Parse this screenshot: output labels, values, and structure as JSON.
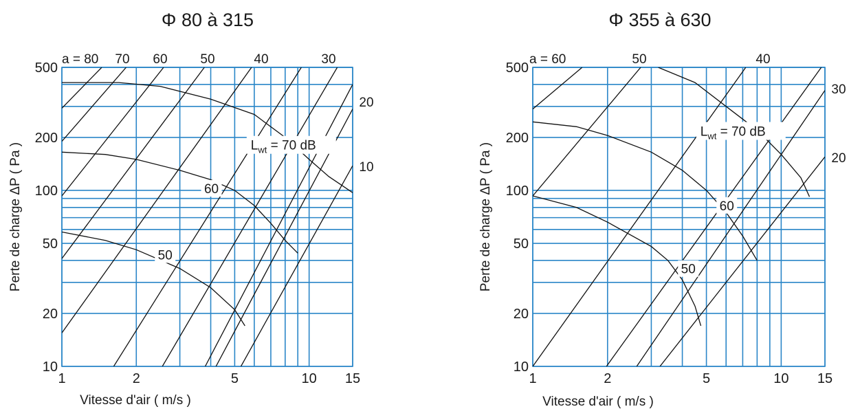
{
  "chart_data": [
    {
      "type": "line",
      "title": "Φ 80 à 315",
      "xlabel": "Vitesse d'air ( m/s )",
      "ylabel": "Perte de charge ΔP ( Pa )",
      "x_scale": "log",
      "y_scale": "log",
      "xlim": [
        1,
        15
      ],
      "ylim": [
        10,
        500
      ],
      "x_ticks": [
        1,
        2,
        5,
        10,
        15
      ],
      "y_ticks": [
        10,
        20,
        50,
        100,
        200,
        500
      ],
      "grid": true,
      "a_prefix": "a = ",
      "a_lines": [
        {
          "label": "80",
          "points": [
            [
              1.0,
              293
            ],
            [
              1.45,
              500
            ]
          ]
        },
        {
          "label": "70",
          "points": [
            [
              1.0,
              190
            ],
            [
              1.82,
              500
            ]
          ]
        },
        {
          "label": "60",
          "points": [
            [
              1.0,
              93
            ],
            [
              2.58,
              500
            ]
          ]
        },
        {
          "label": "50",
          "points": [
            [
              1.0,
              41
            ],
            [
              3.77,
              500
            ]
          ]
        },
        {
          "label": "",
          "points": [
            [
              1.0,
              15.5
            ],
            [
              5.85,
              500
            ]
          ]
        },
        {
          "label": "40",
          "points": [
            [
              1.62,
              10
            ],
            [
              9.3,
              500
            ]
          ]
        },
        {
          "label": "",
          "points": [
            [
              2.55,
              10
            ],
            [
              13.0,
              500
            ]
          ]
        },
        {
          "label": "30",
          "points": [
            [
              3.8,
              10
            ],
            [
              15.0,
              400
            ]
          ]
        },
        {
          "label": "20",
          "points": [
            [
              4.2,
              10
            ],
            [
              15.0,
              290
            ]
          ]
        },
        {
          "label": "10",
          "points": [
            [
              5.3,
              10
            ],
            [
              15.0,
              138
            ]
          ]
        }
      ],
      "lwt_prefix": "L",
      "lwt_sub": "wt",
      "lwt_suffix": " = 70 dB",
      "lwt_curves": [
        {
          "label": "70",
          "points": [
            [
              1.0,
              410
            ],
            [
              1.7,
              410
            ],
            [
              2.5,
              390
            ],
            [
              4.0,
              330
            ],
            [
              6.0,
              270
            ],
            [
              8.0,
              200
            ],
            [
              10.0,
              150
            ],
            [
              12.0,
              120
            ],
            [
              15.0,
              97
            ]
          ]
        },
        {
          "label": "60",
          "points": [
            [
              1.0,
              165
            ],
            [
              1.5,
              160
            ],
            [
              2.0,
              150
            ],
            [
              3.0,
              130
            ],
            [
              4.0,
              115
            ],
            [
              5.0,
              100
            ],
            [
              6.0,
              82
            ],
            [
              7.0,
              65
            ],
            [
              8.0,
              52
            ],
            [
              9.0,
              44
            ]
          ]
        },
        {
          "label": "50",
          "points": [
            [
              1.0,
              58
            ],
            [
              1.5,
              52
            ],
            [
              2.0,
              46
            ],
            [
              3.0,
              36
            ],
            [
              4.0,
              28
            ],
            [
              5.0,
              21
            ],
            [
              5.5,
              17
            ]
          ]
        }
      ]
    },
    {
      "type": "line",
      "title": "Φ 355 à 630",
      "xlabel": "Vitesse d'air ( m/s )",
      "ylabel": "Perte de charge ΔP ( Pa )",
      "x_scale": "log",
      "y_scale": "log",
      "xlim": [
        1,
        15
      ],
      "ylim": [
        10,
        500
      ],
      "x_ticks": [
        1,
        2,
        5,
        10,
        15
      ],
      "y_ticks": [
        10,
        20,
        50,
        100,
        200,
        500
      ],
      "grid": true,
      "a_prefix": "a = ",
      "a_lines": [
        {
          "label": "60",
          "points": [
            [
              1.0,
              290
            ],
            [
              1.58,
              500
            ]
          ]
        },
        {
          "label": "50",
          "points": [
            [
              1.0,
              93
            ],
            [
              2.72,
              500
            ]
          ]
        },
        {
          "label": "40",
          "points": [
            [
              1.0,
              10
            ],
            [
              7.2,
              500
            ]
          ]
        },
        {
          "label": "",
          "points": [
            [
              1.98,
              10
            ],
            [
              14.5,
              500
            ]
          ]
        },
        {
          "label": "30",
          "points": [
            [
              2.62,
              10
            ],
            [
              15.0,
              370
            ]
          ]
        },
        {
          "label": "20",
          "points": [
            [
              3.25,
              10
            ],
            [
              15.0,
              155
            ]
          ]
        }
      ],
      "lwt_prefix": "L",
      "lwt_sub": "wt",
      "lwt_suffix": " = 70 dB",
      "lwt_curves": [
        {
          "label": "70",
          "points": [
            [
              3.2,
              500
            ],
            [
              4.5,
              410
            ],
            [
              6.0,
              300
            ],
            [
              8.0,
              220
            ],
            [
              10.0,
              160
            ],
            [
              12.0,
              118
            ],
            [
              13.0,
              92
            ]
          ]
        },
        {
          "label": "60",
          "points": [
            [
              1.0,
              245
            ],
            [
              1.5,
              230
            ],
            [
              2.0,
              205
            ],
            [
              3.0,
              165
            ],
            [
              4.0,
              130
            ],
            [
              5.0,
              100
            ],
            [
              6.0,
              75
            ],
            [
              7.0,
              55
            ],
            [
              8.0,
              40
            ]
          ]
        },
        {
          "label": "50",
          "points": [
            [
              1.0,
              93
            ],
            [
              1.5,
              80
            ],
            [
              2.0,
              66
            ],
            [
              3.0,
              48
            ],
            [
              3.5,
              40
            ],
            [
              4.0,
              31
            ],
            [
              4.5,
              22
            ],
            [
              4.75,
              17
            ]
          ]
        }
      ]
    }
  ]
}
